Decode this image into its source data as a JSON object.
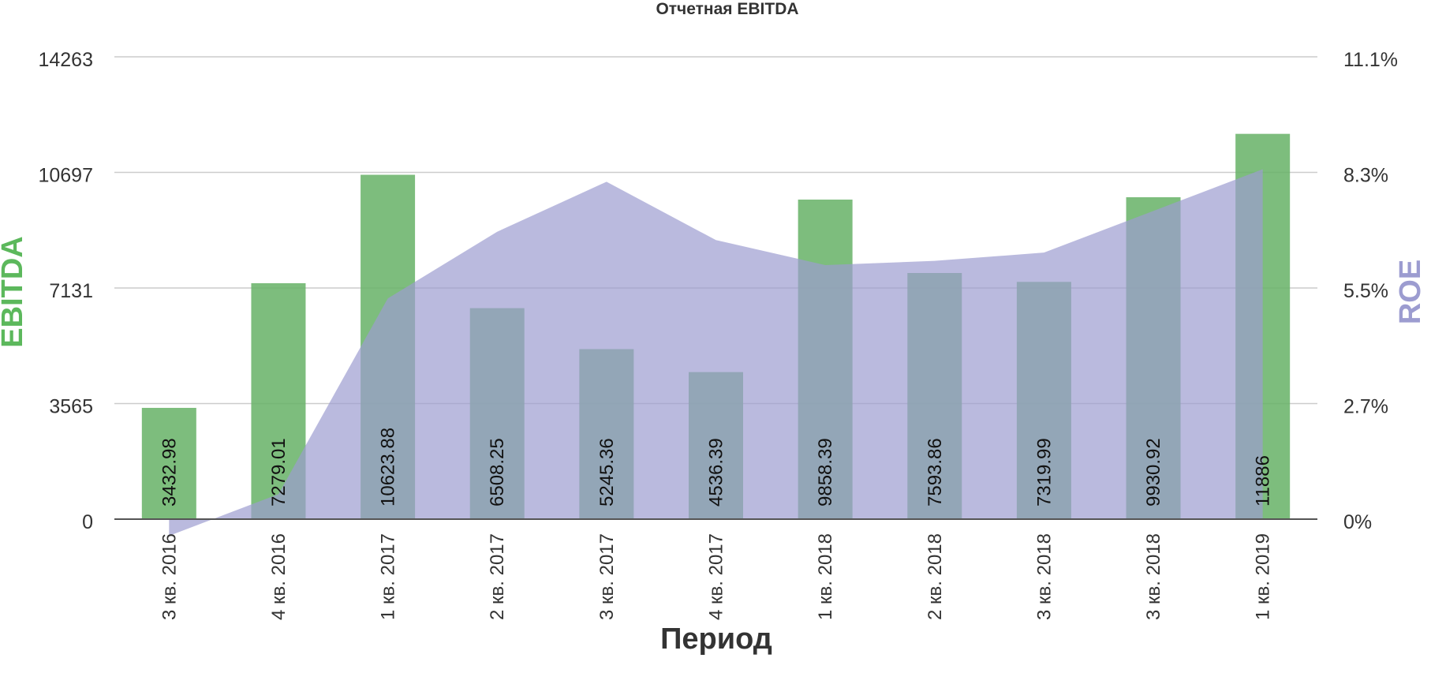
{
  "chart_data": {
    "type": "bar",
    "title": "Отчетная EBITDA",
    "xlabel": "Период",
    "ylabel": "EBITDA",
    "y2label": "ROE",
    "categories": [
      "3 кв. 2016",
      "4 кв. 2016",
      "1 кв. 2017",
      "2 кв. 2017",
      "3 кв. 2017",
      "4 кв. 2017",
      "1 кв. 2018",
      "2 кв. 2018",
      "3 кв. 2018",
      "3 кв. 2018",
      "1 кв. 2019"
    ],
    "series": [
      {
        "name": "EBITDA",
        "type": "bar",
        "axis": "left",
        "color": "#66b266",
        "values": [
          3432.98,
          7279.01,
          10623.88,
          6508.25,
          5245.36,
          4536.39,
          9858.39,
          7593.86,
          7319.99,
          9930.92,
          11886
        ],
        "labels": [
          "3432.98",
          "7279.01",
          "10623.88",
          "6508.25",
          "5245.36",
          "4536.39",
          "9858.39",
          "7593.86",
          "7319.99",
          "9930.92",
          "11886"
        ]
      },
      {
        "name": "ROE",
        "type": "area",
        "axis": "right",
        "color": "#9c9cd0",
        "values": [
          -0.4,
          0.6,
          5.3,
          6.9,
          8.1,
          6.7,
          6.1,
          6.2,
          6.4,
          7.4,
          8.4
        ]
      }
    ],
    "y_ticks": [
      "0",
      "3565",
      "7131",
      "10697",
      "14263"
    ],
    "y2_ticks": [
      "0%",
      "2.7%",
      "5.5%",
      "8.3%",
      "11.1%"
    ],
    "ylim": [
      0,
      14263
    ],
    "y2lim": [
      0,
      11.1
    ],
    "grid": true
  }
}
